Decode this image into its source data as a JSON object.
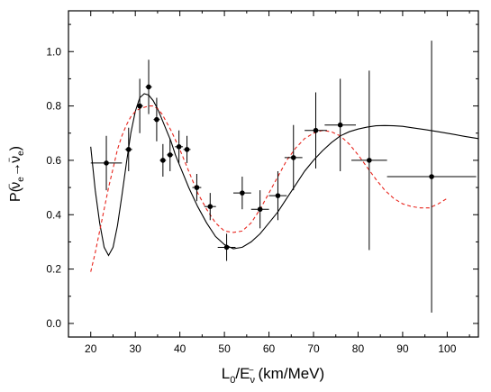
{
  "chart_data": {
    "type": "scatter",
    "xlabel": {
      "main": "L",
      "sub0": "0",
      "mid": "/E",
      "sub1": "ν",
      "sup1": "−",
      "tail": " (km/MeV)"
    },
    "ylabel": {
      "main": "P(",
      "nu1": "ν",
      "s1": "e",
      "arrow": "→",
      "nu2": "ν",
      "s2": "e",
      "close": ")",
      "bar": "−"
    },
    "xlim": [
      15,
      107
    ],
    "ylim": [
      -0.05,
      1.15
    ],
    "xticks": [
      20,
      30,
      40,
      50,
      60,
      70,
      80,
      90,
      100
    ],
    "xtick_labels": [
      "20",
      "30",
      "40",
      "50",
      "60",
      "70",
      "80",
      "90",
      "100"
    ],
    "yticks": [
      0.0,
      0.2,
      0.4,
      0.6,
      0.8,
      1.0
    ],
    "ytick_labels": [
      "0.0",
      "0.2",
      "0.4",
      "0.6",
      "0.8",
      "1.0"
    ],
    "grid": false,
    "series": [
      {
        "kind": "points",
        "color": "#000000",
        "points": [
          {
            "x": 23.5,
            "y": 0.59,
            "xerr": [
              3.5,
              3.5
            ],
            "yerr": [
              0.1,
              0.1
            ]
          },
          {
            "x": 28.5,
            "y": 0.64,
            "xerr": [
              0.8,
              0.8
            ],
            "yerr": [
              0.08,
              0.08
            ]
          },
          {
            "x": 31.0,
            "y": 0.8,
            "xerr": [
              0.7,
              0.7
            ],
            "yerr": [
              0.1,
              0.1
            ]
          },
          {
            "x": 33.0,
            "y": 0.87,
            "xerr": [
              0.7,
              0.7
            ],
            "yerr": [
              0.1,
              0.1
            ]
          },
          {
            "x": 34.8,
            "y": 0.75,
            "xerr": [
              0.7,
              0.7
            ],
            "yerr": [
              0.08,
              0.08
            ]
          },
          {
            "x": 36.2,
            "y": 0.6,
            "xerr": [
              0.7,
              0.7
            ],
            "yerr": [
              0.06,
              0.06
            ]
          },
          {
            "x": 37.8,
            "y": 0.62,
            "xerr": [
              0.7,
              0.7
            ],
            "yerr": [
              0.06,
              0.06
            ]
          },
          {
            "x": 39.8,
            "y": 0.65,
            "xerr": [
              0.9,
              0.9
            ],
            "yerr": [
              0.06,
              0.06
            ]
          },
          {
            "x": 41.6,
            "y": 0.64,
            "xerr": [
              0.8,
              0.8
            ],
            "yerr": [
              0.05,
              0.05
            ]
          },
          {
            "x": 43.8,
            "y": 0.5,
            "xerr": [
              1.0,
              1.0
            ],
            "yerr": [
              0.05,
              0.05
            ]
          },
          {
            "x": 46.8,
            "y": 0.43,
            "xerr": [
              1.3,
              1.3
            ],
            "yerr": [
              0.05,
              0.05
            ]
          },
          {
            "x": 50.5,
            "y": 0.28,
            "xerr": [
              2.0,
              2.0
            ],
            "yerr": [
              0.05,
              0.05
            ]
          },
          {
            "x": 54.0,
            "y": 0.48,
            "xerr": [
              2.0,
              2.0
            ],
            "yerr": [
              0.06,
              0.06
            ]
          },
          {
            "x": 58.0,
            "y": 0.42,
            "xerr": [
              2.0,
              2.0
            ],
            "yerr": [
              0.07,
              0.07
            ]
          },
          {
            "x": 62.0,
            "y": 0.47,
            "xerr": [
              2.0,
              2.0
            ],
            "yerr": [
              0.09,
              0.09
            ]
          },
          {
            "x": 65.5,
            "y": 0.61,
            "xerr": [
              2.0,
              2.0
            ],
            "yerr": [
              0.12,
              0.12
            ]
          },
          {
            "x": 70.5,
            "y": 0.71,
            "xerr": [
              2.5,
              2.5
            ],
            "yerr": [
              0.14,
              0.14
            ]
          },
          {
            "x": 76.0,
            "y": 0.73,
            "xerr": [
              3.5,
              3.5
            ],
            "yerr": [
              0.17,
              0.17
            ]
          },
          {
            "x": 82.5,
            "y": 0.6,
            "xerr": [
              4.0,
              4.0
            ],
            "yerr": [
              0.33,
              0.33
            ]
          },
          {
            "x": 96.5,
            "y": 0.54,
            "xerr": [
              10.0,
              10.0
            ],
            "yerr": [
              0.5,
              0.5
            ]
          }
        ]
      },
      {
        "kind": "line",
        "color": "#000000",
        "dash": "solid",
        "x": [
          20,
          21,
          22,
          23,
          24,
          25,
          26,
          27,
          28,
          29,
          30,
          31,
          32,
          33,
          34,
          35,
          36,
          37,
          38,
          39,
          40,
          42,
          44,
          46,
          48,
          50,
          52,
          54,
          56,
          58,
          60,
          62,
          64,
          66,
          68,
          70,
          72,
          74,
          76,
          78,
          80,
          82,
          84,
          86,
          88,
          90,
          92,
          95,
          98,
          101,
          104,
          107
        ],
        "y": [
          0.65,
          0.49,
          0.37,
          0.28,
          0.25,
          0.28,
          0.36,
          0.47,
          0.59,
          0.7,
          0.78,
          0.83,
          0.845,
          0.84,
          0.82,
          0.79,
          0.75,
          0.71,
          0.67,
          0.62,
          0.58,
          0.5,
          0.43,
          0.37,
          0.32,
          0.29,
          0.275,
          0.28,
          0.3,
          0.33,
          0.37,
          0.41,
          0.46,
          0.51,
          0.56,
          0.6,
          0.635,
          0.665,
          0.69,
          0.705,
          0.715,
          0.722,
          0.727,
          0.728,
          0.727,
          0.725,
          0.72,
          0.713,
          0.705,
          0.697,
          0.688,
          0.68
        ]
      },
      {
        "kind": "line",
        "color": "#e8251d",
        "dash": "dashed",
        "x": [
          20,
          21,
          22,
          23,
          24,
          25,
          26,
          27,
          28,
          29,
          30,
          31,
          32,
          33,
          34,
          35,
          36,
          38,
          40,
          42,
          44,
          46,
          48,
          50,
          52,
          54,
          56,
          58,
          60,
          62,
          64,
          66,
          68,
          70,
          72,
          74,
          76,
          78,
          80,
          82,
          84,
          86,
          88,
          90,
          92,
          94,
          96,
          98,
          100
        ],
        "y": [
          0.19,
          0.26,
          0.34,
          0.42,
          0.5,
          0.57,
          0.64,
          0.69,
          0.73,
          0.76,
          0.78,
          0.79,
          0.795,
          0.8,
          0.8,
          0.79,
          0.77,
          0.71,
          0.64,
          0.56,
          0.48,
          0.42,
          0.37,
          0.34,
          0.335,
          0.34,
          0.37,
          0.42,
          0.48,
          0.54,
          0.6,
          0.645,
          0.68,
          0.7,
          0.71,
          0.705,
          0.69,
          0.66,
          0.62,
          0.575,
          0.53,
          0.49,
          0.46,
          0.44,
          0.43,
          0.425,
          0.425,
          0.44,
          0.46
        ]
      }
    ]
  }
}
